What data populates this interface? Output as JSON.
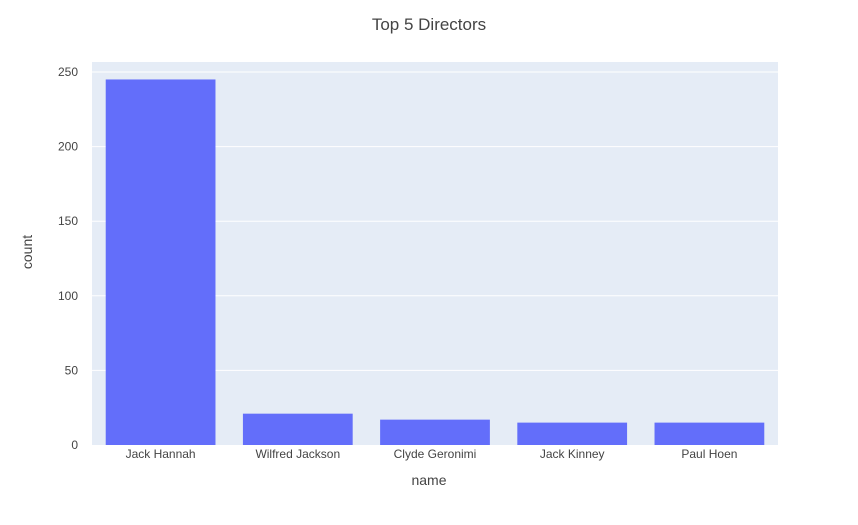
{
  "chart_data": {
    "type": "bar",
    "title": "Top 5 Directors",
    "xlabel": "name",
    "ylabel": "count",
    "categories": [
      "Jack Hannah",
      "Wilfred Jackson",
      "Clyde Geronimi",
      "Jack Kinney",
      "Paul Hoen"
    ],
    "values": [
      245,
      21,
      17,
      15,
      15
    ],
    "ylim": [
      0,
      250
    ],
    "yticks": [
      0,
      50,
      100,
      150,
      200,
      250
    ],
    "grid": true,
    "legend": "none",
    "colors": {
      "bar": "#636efa",
      "plot_background": "#e5ecf6",
      "grid": "#ffffff",
      "text": "#444444"
    }
  }
}
